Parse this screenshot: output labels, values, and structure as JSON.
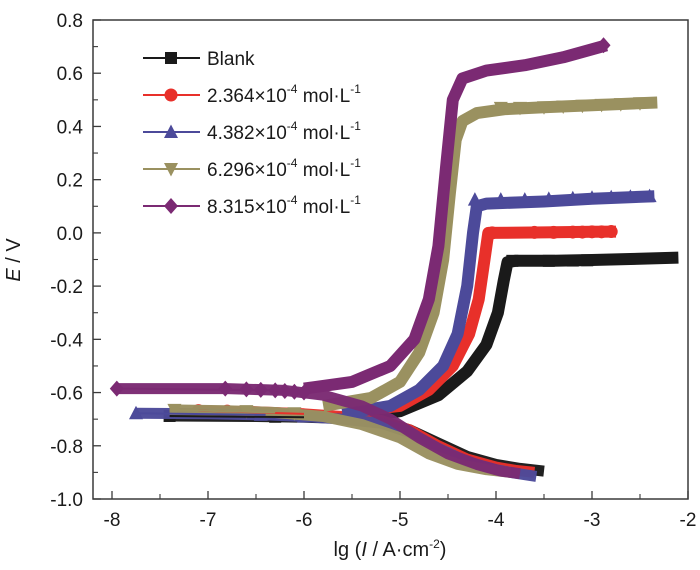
{
  "chart_data": {
    "type": "line",
    "title": "",
    "xlabel": {
      "prefix": "lg (",
      "italic": "I",
      "mid": " / A·cm",
      "sup": "-2",
      "suffix": ")"
    },
    "ylabel": {
      "italic": "E",
      "suffix": " / V"
    },
    "xlim": [
      -8.2,
      -2
    ],
    "ylim": [
      -1.0,
      0.8
    ],
    "xticks": [
      -8,
      -7,
      -6,
      -5,
      -4,
      -3,
      -2
    ],
    "xtick_labels": [
      "-8",
      "-7",
      "-6",
      "-5",
      "-4",
      "-3",
      "-2"
    ],
    "yticks": [
      -1.0,
      -0.8,
      -0.6,
      -0.4,
      -0.2,
      0.0,
      0.2,
      0.4,
      0.6,
      0.8
    ],
    "ytick_labels": [
      "-1.0",
      "-0.8",
      "-0.6",
      "-0.4",
      "-0.2",
      "0.0",
      "0.2",
      "0.4",
      "0.6",
      "0.8"
    ],
    "grid": false,
    "legend_position": "top-left",
    "series": [
      {
        "name": "Blank",
        "legend": {
          "main": "Blank",
          "exp": "",
          "unit": "",
          "unitsup": ""
        },
        "color": "#1a1a1a",
        "marker": "square",
        "cathodic": [
          [
            -7.4,
            -0.688
          ],
          [
            -6.5,
            -0.69
          ],
          [
            -6.0,
            -0.693
          ],
          [
            -5.6,
            -0.697
          ],
          [
            -5.2,
            -0.71
          ],
          [
            -4.9,
            -0.74
          ],
          [
            -4.6,
            -0.79
          ],
          [
            -4.3,
            -0.84
          ],
          [
            -4.0,
            -0.87
          ],
          [
            -3.75,
            -0.885
          ],
          [
            -3.5,
            -0.895
          ]
        ],
        "anodic": [
          [
            -5.4,
            -0.69
          ],
          [
            -5.0,
            -0.67
          ],
          [
            -4.6,
            -0.61
          ],
          [
            -4.3,
            -0.52
          ],
          [
            -4.1,
            -0.42
          ],
          [
            -3.98,
            -0.3
          ],
          [
            -3.92,
            -0.18
          ],
          [
            -3.88,
            -0.11
          ],
          [
            -3.8,
            -0.105
          ],
          [
            -3.4,
            -0.105
          ],
          [
            -3.0,
            -0.102
          ],
          [
            -2.6,
            -0.098
          ],
          [
            -2.1,
            -0.093
          ]
        ],
        "markers": [
          [
            -7.4,
            -0.688
          ],
          [
            -6.3,
            -0.691
          ],
          [
            -5.6,
            -0.697
          ],
          [
            -3.83,
            -0.105
          ],
          [
            -3.45,
            -0.105
          ],
          [
            -3.2,
            -0.104
          ],
          [
            -3.05,
            -0.103
          ]
        ]
      },
      {
        "name": "2.364×10-4 mol·L-1",
        "legend": {
          "main": "2.364×10",
          "exp": "-4",
          "unit": " mol·L",
          "unitsup": "-1"
        },
        "color": "#e8302a",
        "marker": "circle",
        "cathodic": [
          [
            -7.1,
            -0.668
          ],
          [
            -6.5,
            -0.672
          ],
          [
            -6.0,
            -0.68
          ],
          [
            -5.6,
            -0.69
          ],
          [
            -5.2,
            -0.705
          ],
          [
            -4.9,
            -0.74
          ],
          [
            -4.6,
            -0.8
          ],
          [
            -4.3,
            -0.85
          ],
          [
            -4.0,
            -0.88
          ],
          [
            -3.8,
            -0.892
          ],
          [
            -3.6,
            -0.9
          ]
        ],
        "anodic": [
          [
            -5.5,
            -0.67
          ],
          [
            -5.0,
            -0.65
          ],
          [
            -4.7,
            -0.59
          ],
          [
            -4.45,
            -0.5
          ],
          [
            -4.28,
            -0.38
          ],
          [
            -4.18,
            -0.25
          ],
          [
            -4.12,
            -0.1
          ],
          [
            -4.08,
            0.0
          ],
          [
            -3.5,
            0.002
          ],
          [
            -3.0,
            0.004
          ],
          [
            -2.75,
            0.005
          ]
        ],
        "markers": [
          [
            -7.1,
            -0.668
          ],
          [
            -6.8,
            -0.67
          ],
          [
            -4.04,
            0.0
          ],
          [
            -3.6,
            0.002
          ],
          [
            -3.4,
            0.002
          ],
          [
            -3.2,
            0.003
          ],
          [
            -3.1,
            0.003
          ],
          [
            -3.0,
            0.004
          ],
          [
            -2.9,
            0.004
          ],
          [
            -2.8,
            0.005
          ]
        ]
      },
      {
        "name": "4.382×10-4 mol·L-1",
        "legend": {
          "main": "4.382×10",
          "exp": "-4",
          "unit": " mol·L",
          "unitsup": "-1"
        },
        "color": "#4c4a9a",
        "marker": "triangle-up",
        "cathodic": [
          [
            -7.75,
            -0.678
          ],
          [
            -7.0,
            -0.68
          ],
          [
            -6.4,
            -0.684
          ],
          [
            -6.0,
            -0.69
          ],
          [
            -5.6,
            -0.7
          ],
          [
            -5.2,
            -0.715
          ],
          [
            -4.9,
            -0.75
          ],
          [
            -4.6,
            -0.81
          ],
          [
            -4.3,
            -0.86
          ],
          [
            -4.0,
            -0.89
          ],
          [
            -3.8,
            -0.903
          ],
          [
            -3.58,
            -0.915
          ]
        ],
        "anodic": [
          [
            -5.6,
            -0.68
          ],
          [
            -5.1,
            -0.65
          ],
          [
            -4.8,
            -0.59
          ],
          [
            -4.55,
            -0.5
          ],
          [
            -4.4,
            -0.38
          ],
          [
            -4.3,
            -0.2
          ],
          [
            -4.24,
            0.0
          ],
          [
            -4.2,
            0.1
          ],
          [
            -4.1,
            0.11
          ],
          [
            -3.5,
            0.118
          ],
          [
            -3.0,
            0.128
          ],
          [
            -2.35,
            0.138
          ]
        ],
        "markers": [
          [
            -7.75,
            -0.678
          ],
          [
            -6.45,
            -0.684
          ],
          [
            -6.0,
            -0.69
          ],
          [
            -4.22,
            0.125
          ],
          [
            -3.95,
            0.125
          ],
          [
            -3.7,
            0.125
          ],
          [
            -3.45,
            0.128
          ],
          [
            -3.2,
            0.13
          ],
          [
            -3.0,
            0.132
          ],
          [
            -2.8,
            0.134
          ],
          [
            -2.6,
            0.136
          ],
          [
            -2.4,
            0.138
          ]
        ]
      },
      {
        "name": "6.296×10-4 mol·L-1",
        "legend": {
          "main": "6.296×10",
          "exp": "-4",
          "unit": " mol·L",
          "unitsup": "-1"
        },
        "color": "#9a9160",
        "marker": "triangle-down",
        "cathodic": [
          [
            -7.4,
            -0.665
          ],
          [
            -6.8,
            -0.668
          ],
          [
            -6.3,
            -0.675
          ],
          [
            -5.8,
            -0.69
          ],
          [
            -5.4,
            -0.72
          ],
          [
            -5.0,
            -0.77
          ],
          [
            -4.7,
            -0.83
          ],
          [
            -4.4,
            -0.87
          ],
          [
            -4.1,
            -0.89
          ],
          [
            -3.85,
            -0.9
          ]
        ],
        "anodic": [
          [
            -5.8,
            -0.65
          ],
          [
            -5.3,
            -0.62
          ],
          [
            -5.0,
            -0.56
          ],
          [
            -4.8,
            -0.45
          ],
          [
            -4.65,
            -0.3
          ],
          [
            -4.55,
            -0.1
          ],
          [
            -4.48,
            0.15
          ],
          [
            -4.42,
            0.35
          ],
          [
            -4.35,
            0.42
          ],
          [
            -4.2,
            0.45
          ],
          [
            -3.9,
            0.465
          ],
          [
            -3.5,
            0.472
          ],
          [
            -3.0,
            0.48
          ],
          [
            -2.32,
            0.49
          ]
        ],
        "markers": [
          [
            -7.35,
            -0.665
          ],
          [
            -6.6,
            -0.67
          ],
          [
            -6.1,
            -0.678
          ],
          [
            -3.95,
            0.47
          ],
          [
            -3.75,
            0.47
          ],
          [
            -3.5,
            0.472
          ],
          [
            -3.3,
            0.475
          ],
          [
            -3.1,
            0.478
          ],
          [
            -2.9,
            0.481
          ],
          [
            -2.7,
            0.484
          ],
          [
            -2.5,
            0.487
          ]
        ]
      },
      {
        "name": "8.315×10-4 mol·L-1",
        "legend": {
          "main": "8.315×10",
          "exp": "-4",
          "unit": " mol·L",
          "unitsup": "-1"
        },
        "color": "#7b2a73",
        "marker": "diamond",
        "cathodic": [
          [
            -7.95,
            -0.585
          ],
          [
            -6.8,
            -0.585
          ],
          [
            -6.2,
            -0.592
          ],
          [
            -5.8,
            -0.61
          ],
          [
            -5.4,
            -0.65
          ],
          [
            -5.1,
            -0.7
          ],
          [
            -4.8,
            -0.77
          ],
          [
            -4.5,
            -0.83
          ],
          [
            -4.2,
            -0.87
          ],
          [
            -3.95,
            -0.895
          ],
          [
            -3.75,
            -0.905
          ]
        ],
        "anodic": [
          [
            -6.0,
            -0.585
          ],
          [
            -5.5,
            -0.56
          ],
          [
            -5.1,
            -0.5
          ],
          [
            -4.85,
            -0.4
          ],
          [
            -4.7,
            -0.25
          ],
          [
            -4.6,
            -0.05
          ],
          [
            -4.52,
            0.25
          ],
          [
            -4.45,
            0.5
          ],
          [
            -4.35,
            0.58
          ],
          [
            -4.1,
            0.61
          ],
          [
            -3.7,
            0.63
          ],
          [
            -3.3,
            0.66
          ],
          [
            -2.85,
            0.705
          ]
        ],
        "markers": [
          [
            -7.95,
            -0.585
          ],
          [
            -6.82,
            -0.585
          ],
          [
            -6.6,
            -0.588
          ],
          [
            -6.45,
            -0.59
          ],
          [
            -6.3,
            -0.592
          ],
          [
            -6.2,
            -0.594
          ],
          [
            -6.1,
            -0.597
          ],
          [
            -6.0,
            -0.6
          ],
          [
            -2.88,
            0.705
          ]
        ]
      }
    ]
  }
}
